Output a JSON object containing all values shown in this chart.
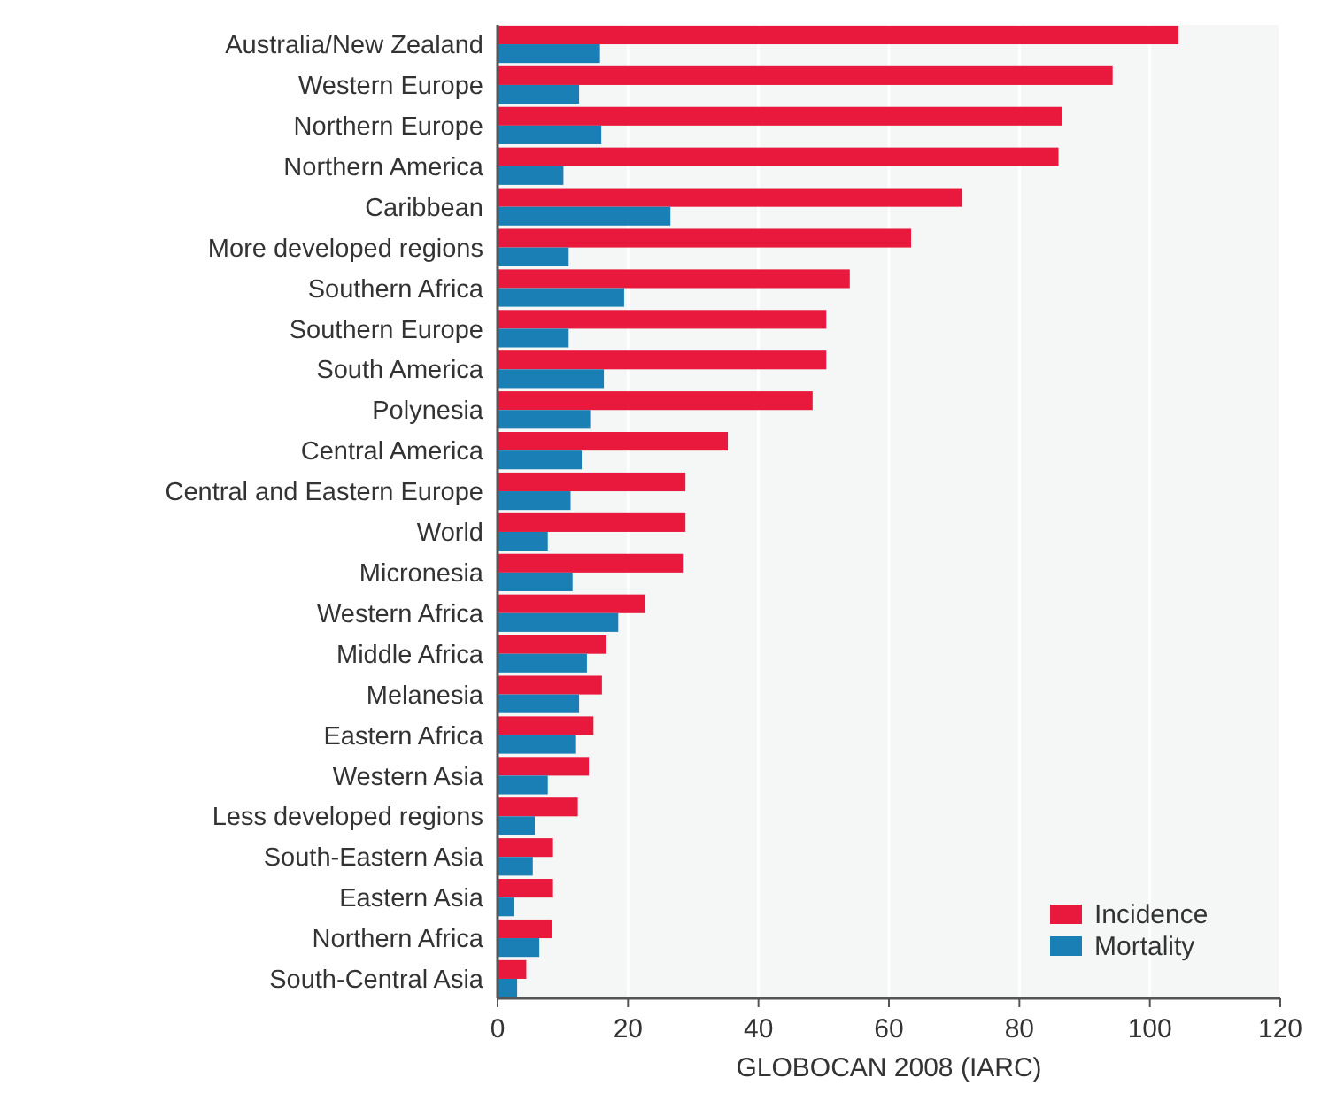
{
  "chart_data": {
    "type": "bar",
    "orientation": "horizontal",
    "xlabel": "GLOBOCAN 2008 (IARC)",
    "categories": [
      "Australia/New Zealand",
      "Western Europe",
      "Northern Europe",
      "Northern America",
      "Caribbean",
      "More developed regions",
      "Southern Africa",
      "Southern Europe",
      "South America",
      "Polynesia",
      "Central America",
      "Central and Eastern Europe",
      "World",
      "Micronesia",
      "Western Africa",
      "Middle Africa",
      "Melanesia",
      "Eastern Africa",
      "Western Asia",
      "Less developed regions",
      "South-Eastern Asia",
      "Eastern Asia",
      "Northern Africa",
      "South-Central Asia"
    ],
    "series": [
      {
        "name": "Incidence",
        "color": "#e8193c",
        "values": [
          104.4,
          94.3,
          86.6,
          86.0,
          71.2,
          63.4,
          54.0,
          50.4,
          50.4,
          48.3,
          35.3,
          28.8,
          28.8,
          28.4,
          22.6,
          16.7,
          16.0,
          14.7,
          14.0,
          12.3,
          8.5,
          8.5,
          8.4,
          4.4
        ]
      },
      {
        "name": "Mortality",
        "color": "#1a7fb5",
        "values": [
          15.7,
          12.5,
          15.9,
          10.1,
          26.5,
          10.9,
          19.4,
          10.9,
          16.3,
          14.2,
          12.9,
          11.2,
          7.7,
          11.5,
          18.5,
          13.7,
          12.5,
          11.9,
          7.7,
          5.7,
          5.4,
          2.5,
          6.4,
          3.0
        ]
      }
    ],
    "xlim": [
      0,
      120
    ],
    "xticks": [
      0,
      20,
      40,
      60,
      80,
      100,
      120
    ],
    "grid": "x",
    "legend": "bottom right"
  }
}
